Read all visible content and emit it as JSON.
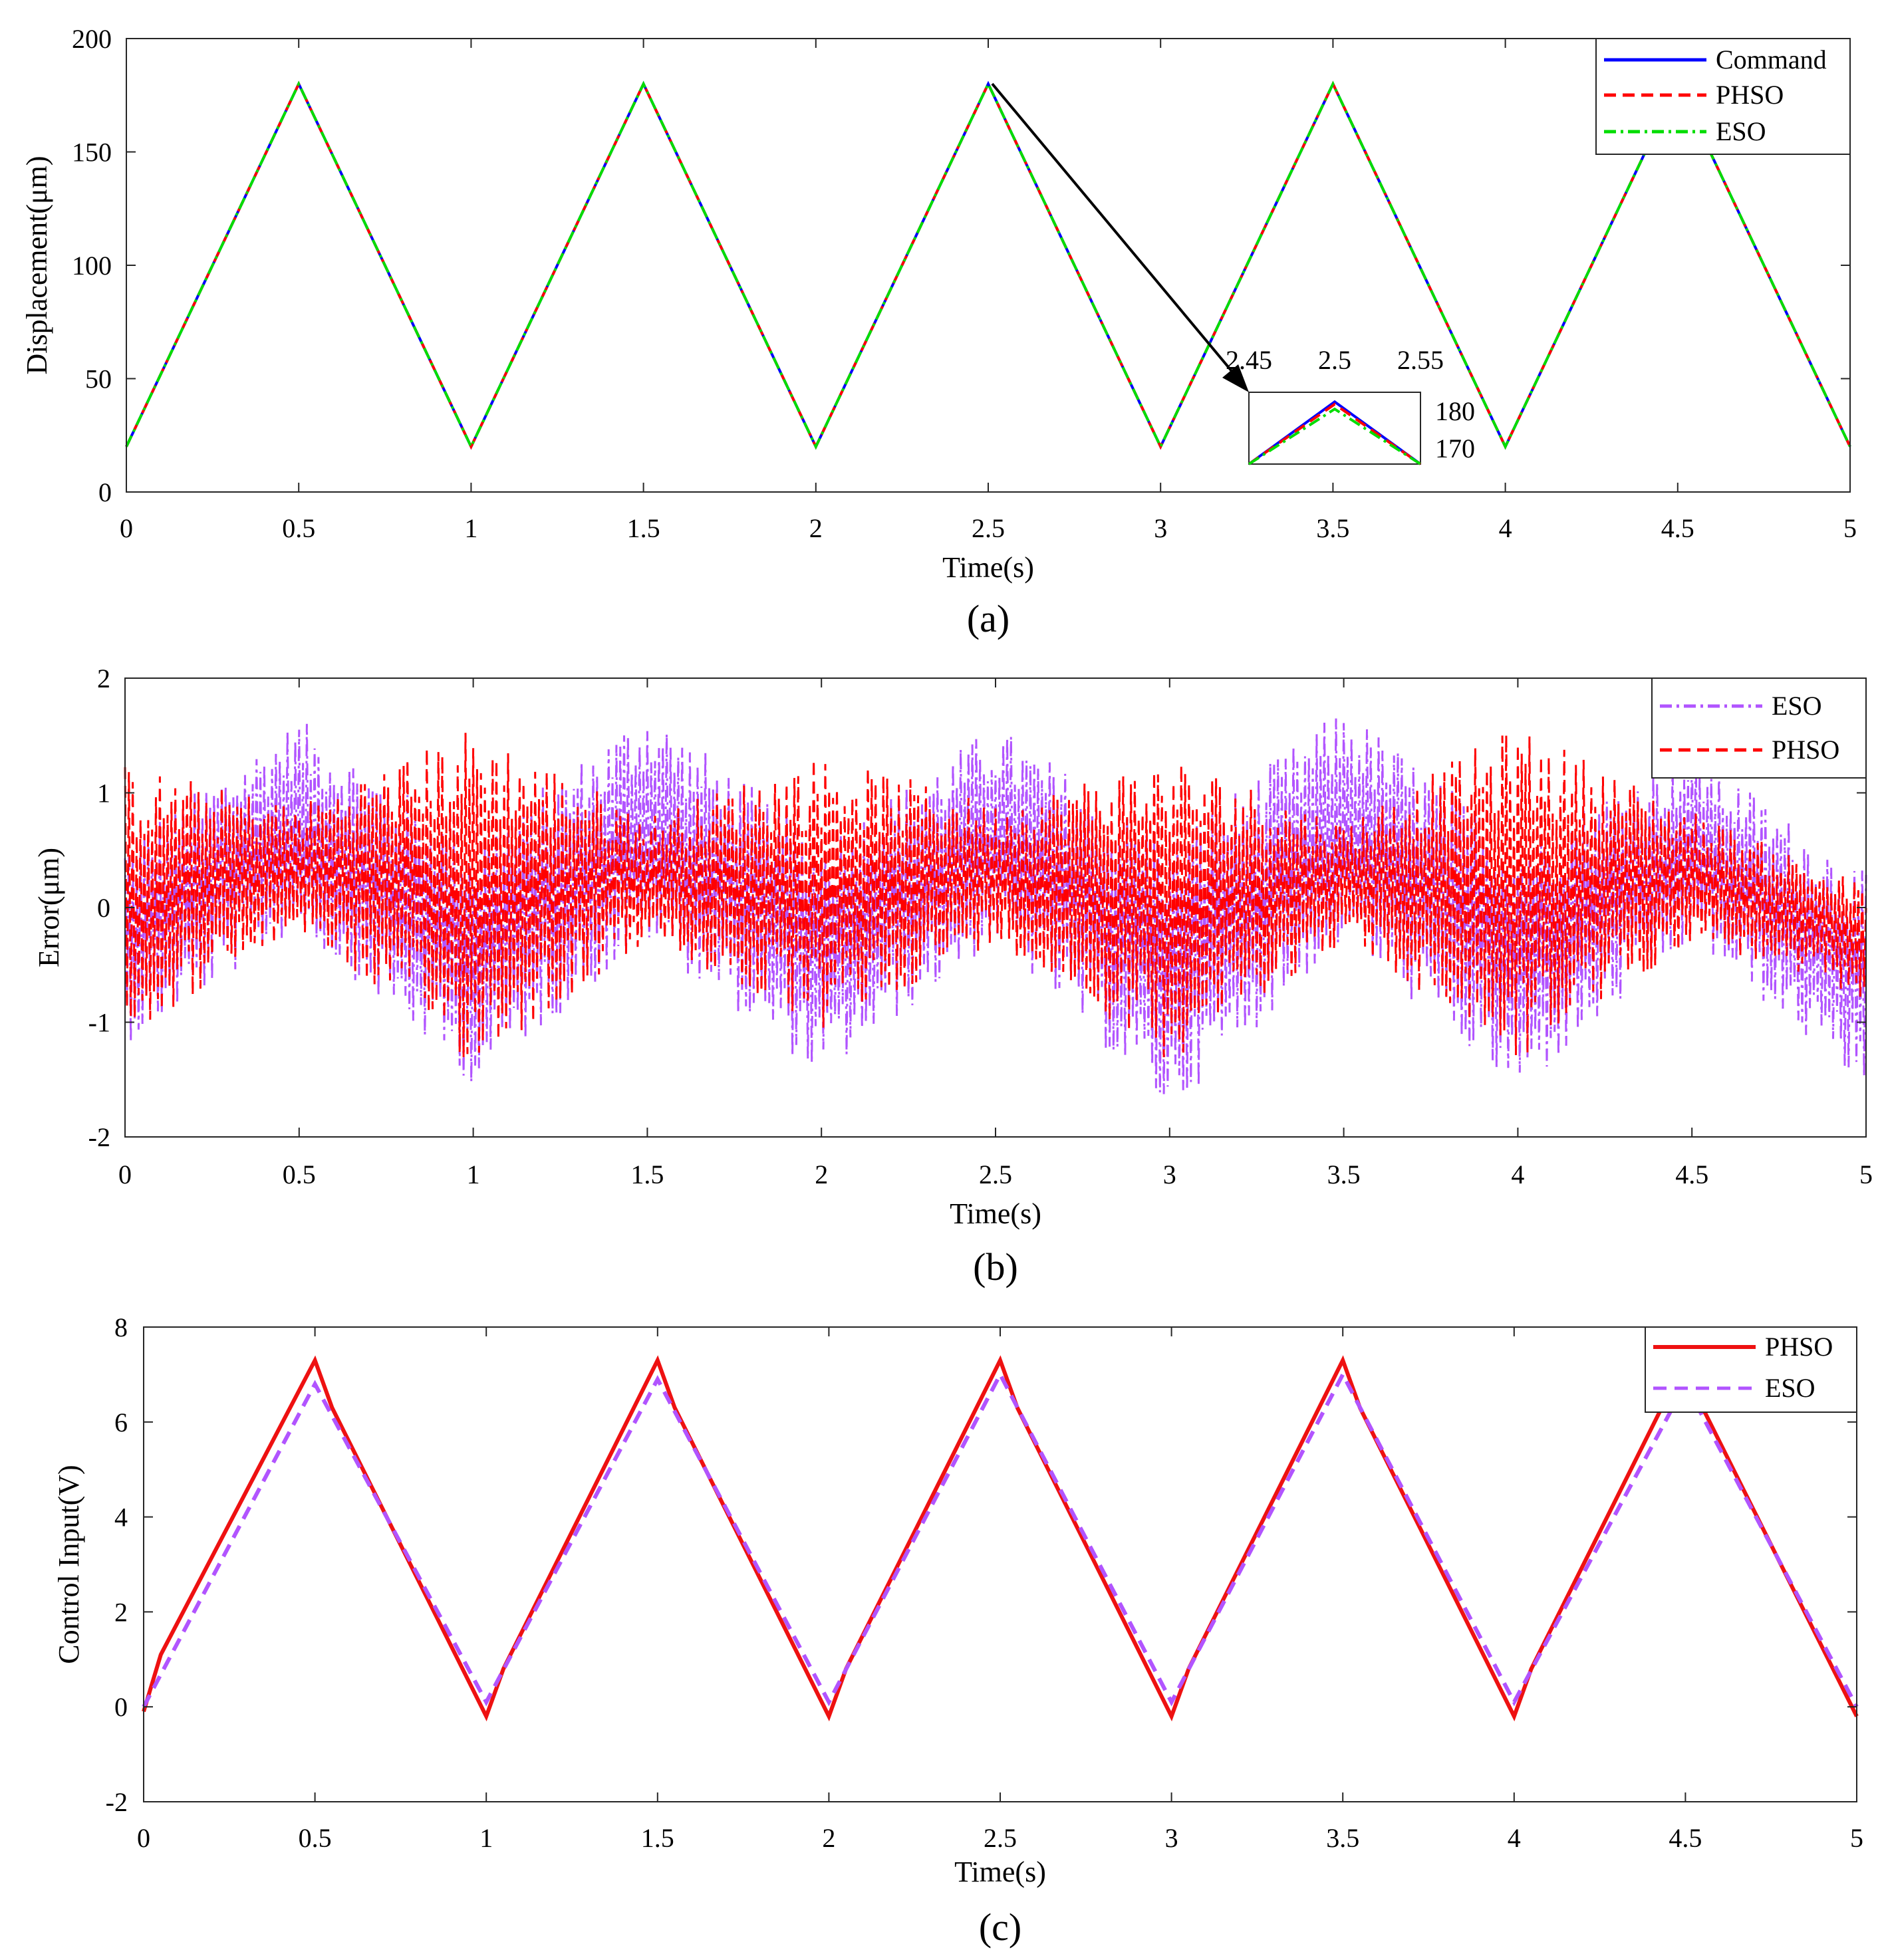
{
  "chart_data": [
    {
      "id": "a",
      "type": "line",
      "caption": "(a)",
      "xlabel": "Time(s)",
      "ylabel": "Displacement(μm)",
      "xlim": [
        0,
        5
      ],
      "ylim": [
        0,
        200
      ],
      "xticks": [
        0,
        0.5,
        1,
        1.5,
        2,
        2.5,
        3,
        3.5,
        4,
        4.5,
        5
      ],
      "yticks": [
        0,
        50,
        100,
        150,
        200
      ],
      "xtick_labels": [
        "0",
        "0.5",
        "1",
        "1.5",
        "2",
        "2.5",
        "3",
        "3.5",
        "4",
        "4.5",
        "5"
      ],
      "ytick_labels": [
        "0",
        "50",
        "100",
        "150",
        "200"
      ],
      "legend_position": "top-right",
      "series": [
        {
          "name": "Command",
          "color": "#0000ff",
          "style": "solid",
          "x": [
            0,
            0.5,
            1,
            1.5,
            2,
            2.5,
            3,
            3.5,
            4,
            4.5,
            5
          ],
          "y": [
            20,
            180,
            20,
            180,
            20,
            180,
            20,
            180,
            20,
            180,
            20
          ]
        },
        {
          "name": "PHSO",
          "color": "#ff0000",
          "style": "dashed",
          "x": [
            0,
            0.5,
            1,
            1.5,
            2,
            2.5,
            3,
            3.5,
            4,
            4.5,
            5
          ],
          "y": [
            20,
            180,
            20,
            180,
            20,
            180,
            20,
            180,
            20,
            180,
            20
          ]
        },
        {
          "name": "ESO",
          "color": "#00dd00",
          "style": "dashdot",
          "x": [
            0,
            0.5,
            1,
            1.5,
            2,
            2.5,
            3,
            3.5,
            4,
            4.5,
            5
          ],
          "y": [
            20,
            180,
            20,
            180,
            20,
            180,
            20,
            180,
            20,
            180,
            20
          ]
        }
      ],
      "inset": {
        "xlim": [
          2.45,
          2.55
        ],
        "ylim": [
          167,
          182
        ],
        "xtick_labels": [
          "2.45",
          "2.5",
          "2.55"
        ],
        "ytick_labels": [
          "180",
          "170"
        ],
        "series": [
          {
            "name": "Command",
            "color": "#0000ff",
            "style": "solid",
            "x": [
              2.45,
              2.5,
              2.55
            ],
            "y": [
              167,
              180,
              167
            ]
          },
          {
            "name": "PHSO",
            "color": "#ff0000",
            "style": "dashed",
            "x": [
              2.45,
              2.5,
              2.55
            ],
            "y": [
              167,
              179.5,
              167
            ]
          },
          {
            "name": "ESO",
            "color": "#00dd00",
            "style": "dashdot",
            "x": [
              2.45,
              2.5,
              2.55
            ],
            "y": [
              167,
              178.5,
              167
            ]
          }
        ]
      }
    },
    {
      "id": "b",
      "type": "line",
      "caption": "(b)",
      "xlabel": "Time(s)",
      "ylabel": "Error(μm)",
      "xlim": [
        0,
        5
      ],
      "ylim": [
        -2,
        2
      ],
      "xticks": [
        0,
        0.5,
        1,
        1.5,
        2,
        2.5,
        3,
        3.5,
        4,
        4.5,
        5
      ],
      "yticks": [
        -2,
        -1,
        0,
        1,
        2
      ],
      "xtick_labels": [
        "0",
        "0.5",
        "1",
        "1.5",
        "2",
        "2.5",
        "3",
        "3.5",
        "4",
        "4.5",
        "5"
      ],
      "ytick_labels": [
        "-2",
        "-1",
        "0",
        "1",
        "2"
      ],
      "legend_position": "top-right",
      "series": [
        {
          "name": "ESO",
          "color": "#b154ff",
          "style": "dashdot",
          "envelope_upper": [
            [
              0,
              0.6
            ],
            [
              0.5,
              1.65
            ],
            [
              1,
              0.6
            ],
            [
              1.5,
              1.75
            ],
            [
              2,
              0.6
            ],
            [
              2.5,
              1.6
            ],
            [
              3,
              0.6
            ],
            [
              3.5,
              1.75
            ],
            [
              4,
              0.6
            ],
            [
              4.5,
              1.4
            ],
            [
              5,
              0.3
            ]
          ],
          "envelope_lower": [
            [
              0,
              -1.2
            ],
            [
              0.5,
              -0.2
            ],
            [
              1,
              -1.55
            ],
            [
              1.5,
              -0.3
            ],
            [
              2,
              -1.5
            ],
            [
              2.5,
              -0.3
            ],
            [
              3,
              -1.8
            ],
            [
              3.5,
              -0.3
            ],
            [
              4,
              -1.65
            ],
            [
              4.5,
              -0.3
            ],
            [
              5,
              -1.6
            ]
          ]
        },
        {
          "name": "PHSO",
          "color": "#ff0000",
          "style": "dashed",
          "envelope_upper": [
            [
              0,
              1.25
            ],
            [
              0.5,
              0.9
            ],
            [
              1,
              1.6
            ],
            [
              1.5,
              0.8
            ],
            [
              2,
              1.35
            ],
            [
              2.5,
              0.9
            ],
            [
              3,
              1.35
            ],
            [
              3.5,
              0.75
            ],
            [
              4,
              1.6
            ],
            [
              4.5,
              0.85
            ],
            [
              5,
              0.2
            ]
          ],
          "envelope_lower": [
            [
              0,
              -1.15
            ],
            [
              0.5,
              -0.2
            ],
            [
              1,
              -1.4
            ],
            [
              1.5,
              -0.3
            ],
            [
              2,
              -1.1
            ],
            [
              2.5,
              -0.3
            ],
            [
              3,
              -1.35
            ],
            [
              3.5,
              -0.3
            ],
            [
              4,
              -1.35
            ],
            [
              4.5,
              -0.3
            ],
            [
              5,
              -0.8
            ]
          ]
        }
      ]
    },
    {
      "id": "c",
      "type": "line",
      "caption": "(c)",
      "xlabel": "Time(s)",
      "ylabel": "Control Input(V)",
      "xlim": [
        0,
        5
      ],
      "ylim": [
        -2,
        8
      ],
      "xticks": [
        0,
        0.5,
        1,
        1.5,
        2,
        2.5,
        3,
        3.5,
        4,
        4.5,
        5
      ],
      "yticks": [
        -2,
        0,
        2,
        4,
        6,
        8
      ],
      "xtick_labels": [
        "0",
        "0.5",
        "1",
        "1.5",
        "2",
        "2.5",
        "3",
        "3.5",
        "4",
        "4.5",
        "5"
      ],
      "ytick_labels": [
        "-2",
        "0",
        "2",
        "4",
        "6",
        "8"
      ],
      "legend_position": "top-right",
      "series": [
        {
          "name": "PHSO",
          "color": "#ee1111",
          "style": "solid",
          "x": [
            0,
            0.05,
            0.5,
            0.55,
            1,
            1.05,
            1.5,
            1.55,
            2,
            2.05,
            2.5,
            2.55,
            3,
            3.05,
            3.5,
            3.55,
            4,
            4.05,
            4.5,
            4.55,
            5
          ],
          "y": [
            -0.1,
            1.1,
            7.3,
            6.3,
            -0.2,
            0.8,
            7.3,
            6.3,
            -0.2,
            0.8,
            7.3,
            6.3,
            -0.2,
            0.8,
            7.3,
            6.3,
            -0.2,
            0.8,
            7.3,
            6.3,
            -0.2
          ]
        },
        {
          "name": "ESO",
          "color": "#b154ff",
          "style": "dashed",
          "x": [
            0,
            0.5,
            1,
            1.5,
            2,
            2.5,
            3,
            3.5,
            4,
            4.5,
            5
          ],
          "y": [
            0,
            6.8,
            0.1,
            6.9,
            0.1,
            7.0,
            0.1,
            7.0,
            0.1,
            6.8,
            0
          ]
        }
      ]
    }
  ]
}
